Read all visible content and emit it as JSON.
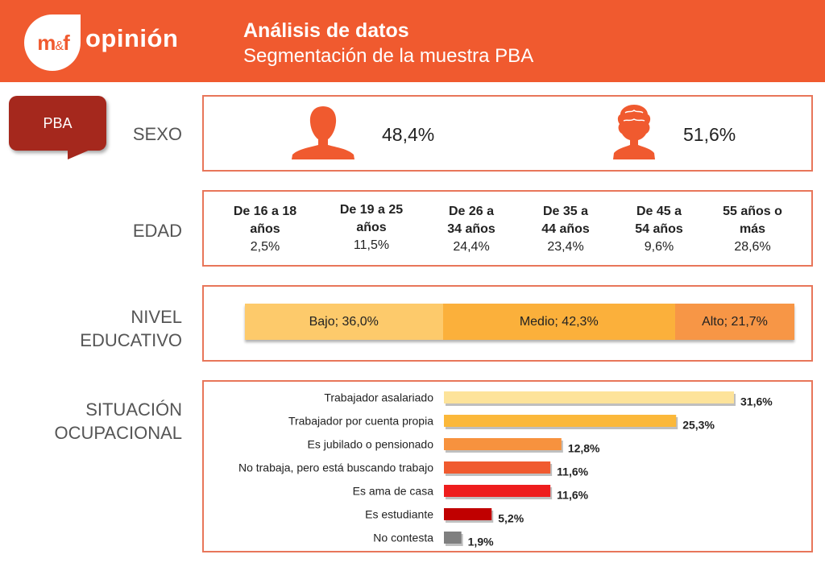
{
  "header": {
    "logo_mf": "m",
    "logo_amp": "&",
    "logo_f": "f",
    "logo_word": "opinión",
    "title": "Análisis de datos",
    "subtitle": "Segmentación de la muestra PBA"
  },
  "badge": {
    "label": "PBA"
  },
  "sections": {
    "sexo": "SEXO",
    "edad": "EDAD",
    "nivel_line1": "NIVEL",
    "nivel_line2": "EDUCATIVO",
    "situacion_line1": "SITUACIÓN",
    "situacion_line2": "OCUPACIONAL"
  },
  "colors": {
    "header": "#f05a2f",
    "badge": "#a5281d",
    "panel_border": "#e8765a",
    "person_icon": "#f05a2f",
    "edu_bajo": "#fdca6b",
    "edu_medio": "#fbb03b",
    "edu_alto": "#f79646"
  },
  "icons": {
    "male": "male-person-icon",
    "female": "female-person-icon"
  },
  "chart_data": [
    {
      "type": "table",
      "name": "sexo",
      "values": [
        {
          "icon": "male-person-icon",
          "value": 48.4,
          "text": "48,4%"
        },
        {
          "icon": "female-person-icon",
          "value": 51.6,
          "text": "51,6%"
        }
      ]
    },
    {
      "type": "table",
      "name": "edad",
      "groups": [
        {
          "line1": "De 16 a 18",
          "line2": "años",
          "value": 2.5,
          "text": "2,5%"
        },
        {
          "line1": "De 19 a 25",
          "line2": "años",
          "value": 11.5,
          "text": "11,5%"
        },
        {
          "line1": "De 26 a",
          "line2": "34 años",
          "value": 24.4,
          "text": "24,4%"
        },
        {
          "line1": "De 35 a",
          "line2": "44 años",
          "value": 23.4,
          "text": "23,4%"
        },
        {
          "line1": "De 45 a",
          "line2": "54 años",
          "value": 9.6,
          "text": "9,6%"
        },
        {
          "line1": "55 años o",
          "line2": "más",
          "value": 28.6,
          "text": "28,6%"
        }
      ]
    },
    {
      "type": "bar",
      "stacked": true,
      "orientation": "horizontal",
      "name": "nivel educativo",
      "segments": [
        {
          "label": "Bajo; 36,0%",
          "value": 36.0,
          "color": "#fdca6b"
        },
        {
          "label": "Medio; 42,3%",
          "value": 42.3,
          "color": "#fbb03b"
        },
        {
          "label": "Alto; 21,7%",
          "value": 21.7,
          "color": "#f79646"
        }
      ]
    },
    {
      "type": "bar",
      "orientation": "horizontal",
      "name": "situación ocupacional",
      "categories": [
        "Trabajador asalariado",
        "Trabajador por cuenta propia",
        "Es jubilado o pensionado",
        "No trabaja, pero está buscando trabajo",
        "Es ama de casa",
        "Es estudiante",
        "No contesta"
      ],
      "values": [
        31.6,
        25.3,
        12.8,
        11.6,
        11.6,
        5.2,
        1.9
      ],
      "value_labels": [
        "31,6%",
        "25,3%",
        "12,8%",
        "11,6%",
        "11,6%",
        "5,2%",
        "1,9%"
      ],
      "colors": [
        "#fde39a",
        "#fbb83a",
        "#f7923e",
        "#f05a2f",
        "#ee1d1d",
        "#c00000",
        "#7f7f7f"
      ],
      "xlim": [
        0,
        31.6
      ]
    }
  ]
}
